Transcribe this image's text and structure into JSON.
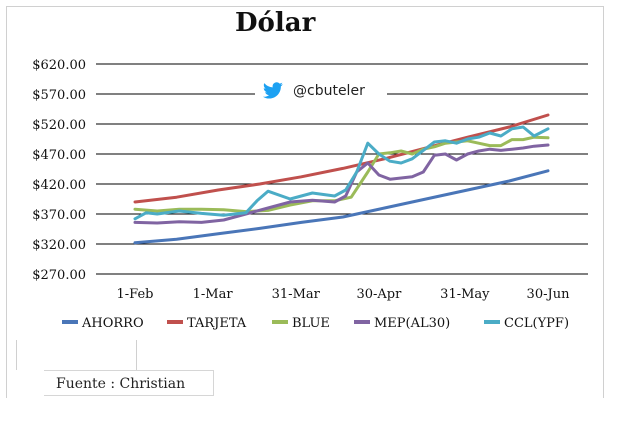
{
  "chart_data": {
    "type": "line",
    "title": "Dólar",
    "watermark": "@cbuteler",
    "watermark_icon": "twitter-bird-icon",
    "source_note": "Fuente : Christian",
    "ylim": [
      270,
      620
    ],
    "yticks": [
      "$620.00",
      "$570.00",
      "$520.00",
      "$470.00",
      "$420.00",
      "$370.00",
      "$320.00",
      "$270.00"
    ],
    "ytick_values": [
      620,
      570,
      520,
      470,
      420,
      370,
      320,
      270
    ],
    "xlim": [
      0,
      153
    ],
    "xticks": [
      {
        "label": "1-Feb",
        "day": 0
      },
      {
        "label": "1-Mar",
        "day": 28
      },
      {
        "label": "31-Mar",
        "day": 58
      },
      {
        "label": "30-Apr",
        "day": 88
      },
      {
        "label": "31-May",
        "day": 119
      },
      {
        "label": "30-Jun",
        "day": 149
      }
    ],
    "legend_position": "bottom",
    "grid": "horizontal",
    "series": [
      {
        "name": "AHORRO",
        "color": "#4a76b8",
        "x": [
          0,
          15,
          30,
          45,
          60,
          75,
          90,
          105,
          120,
          135,
          149
        ],
        "y": [
          322,
          328,
          337,
          346,
          356,
          365,
          380,
          395,
          410,
          425,
          442
        ]
      },
      {
        "name": "TARJETA",
        "color": "#c0504d",
        "x": [
          0,
          15,
          30,
          45,
          60,
          75,
          90,
          105,
          120,
          135,
          149
        ],
        "y": [
          390,
          398,
          410,
          420,
          432,
          446,
          462,
          480,
          498,
          515,
          535
        ]
      },
      {
        "name": "BLUE",
        "color": "#9bbb59",
        "x": [
          0,
          8,
          16,
          24,
          32,
          40,
          48,
          56,
          64,
          72,
          78,
          84,
          88,
          92,
          96,
          100,
          104,
          108,
          112,
          116,
          120,
          124,
          128,
          132,
          136,
          140,
          144,
          149
        ],
        "y": [
          378,
          375,
          378,
          378,
          377,
          374,
          376,
          385,
          392,
          392,
          398,
          440,
          470,
          472,
          475,
          470,
          478,
          482,
          488,
          490,
          492,
          488,
          484,
          484,
          494,
          494,
          498,
          497
        ]
      },
      {
        "name": "MEP(AL30)",
        "color": "#8064a2",
        "x": [
          0,
          8,
          16,
          24,
          32,
          40,
          48,
          56,
          64,
          72,
          76,
          80,
          84,
          88,
          92,
          96,
          100,
          104,
          108,
          112,
          116,
          120,
          124,
          128,
          132,
          136,
          140,
          144,
          149
        ],
        "y": [
          356,
          355,
          357,
          356,
          360,
          370,
          380,
          390,
          393,
          390,
          400,
          440,
          455,
          435,
          428,
          430,
          432,
          440,
          468,
          470,
          460,
          470,
          475,
          478,
          476,
          478,
          480,
          483,
          485
        ]
      },
      {
        "name": "CCL(YPF)",
        "color": "#4bacc6",
        "x": [
          0,
          4,
          8,
          16,
          24,
          32,
          40,
          44,
          48,
          56,
          64,
          72,
          76,
          80,
          84,
          88,
          92,
          96,
          100,
          104,
          108,
          112,
          116,
          120,
          124,
          128,
          132,
          136,
          140,
          144,
          149
        ],
        "y": [
          362,
          372,
          370,
          375,
          371,
          368,
          372,
          392,
          408,
          395,
          405,
          400,
          410,
          440,
          488,
          470,
          458,
          455,
          462,
          476,
          490,
          492,
          488,
          495,
          498,
          505,
          500,
          512,
          515,
          500,
          512
        ]
      }
    ]
  }
}
